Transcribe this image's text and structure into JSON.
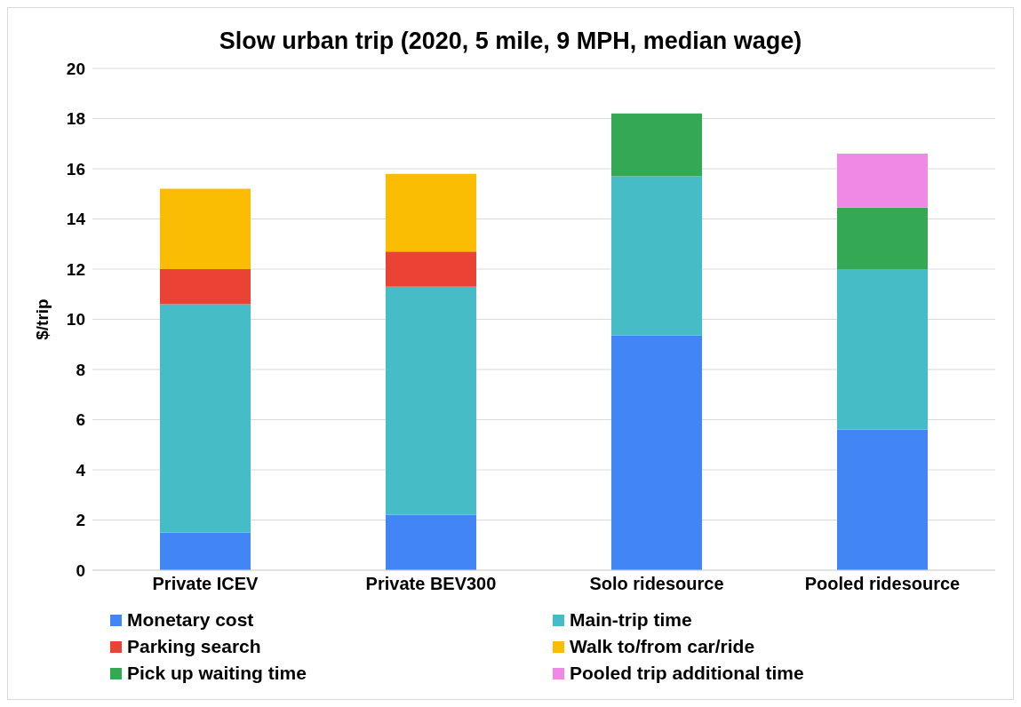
{
  "chart_data": {
    "type": "bar",
    "title": "Slow urban trip (2020, 5 mile, 9 MPH, median wage)",
    "ylabel": "$/trip",
    "categories": [
      "Private ICEV",
      "Private BEV300",
      "Solo ridesource",
      "Pooled ridesource"
    ],
    "stacked": true,
    "ylim": [
      0,
      20
    ],
    "yticks": [
      0,
      2,
      4,
      6,
      8,
      10,
      12,
      14,
      16,
      18,
      20
    ],
    "grid": "y",
    "legend": "bottom",
    "series": [
      {
        "name": "Monetary cost",
        "color": "#4285f4",
        "values": [
          1.5,
          2.2,
          9.35,
          5.6
        ]
      },
      {
        "name": "Main-trip time",
        "color": "#46bdc6",
        "values": [
          9.1,
          9.1,
          6.35,
          6.4
        ]
      },
      {
        "name": "Parking search",
        "color": "#ea4335",
        "values": [
          1.4,
          1.4,
          null,
          null
        ]
      },
      {
        "name": "Walk to/from car/ride",
        "color": "#fbbc04",
        "values": [
          3.2,
          3.1,
          null,
          null
        ]
      },
      {
        "name": "Pick up waiting time",
        "color": "#34a853",
        "values": [
          null,
          null,
          2.5,
          2.45
        ]
      },
      {
        "name": "Pooled trip additional time",
        "color": "#f088e6",
        "values": [
          null,
          null,
          null,
          2.15
        ]
      }
    ]
  }
}
